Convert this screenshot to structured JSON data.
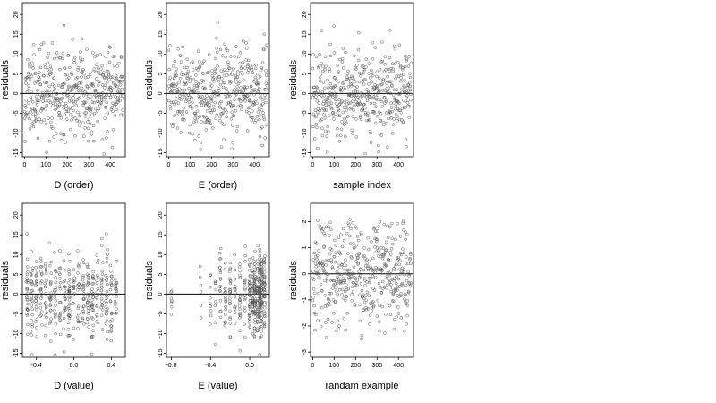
{
  "chart_data": [
    {
      "type": "scatter",
      "xlabel": "D (order)",
      "ylabel": "residuals",
      "xlim": [
        -10,
        470
      ],
      "ylim": [
        -16,
        23
      ],
      "xticks": [
        0,
        100,
        200,
        300,
        400
      ],
      "xtick_labels": [
        "0",
        "100",
        "200",
        "300",
        "400"
      ],
      "yticks": [
        -15,
        -10,
        -5,
        0,
        5,
        10,
        15,
        20
      ],
      "ytick_labels": [
        "-15",
        "-10",
        "-5",
        "0",
        "5",
        "10",
        "15",
        "20"
      ],
      "hline": 0,
      "x_kind": "index",
      "n": 460,
      "y_spread": 5.5,
      "seed": 11
    },
    {
      "type": "scatter",
      "xlabel": "E (order)",
      "ylabel": "residuals",
      "xlim": [
        -10,
        470
      ],
      "ylim": [
        -16,
        23
      ],
      "xticks": [
        0,
        100,
        200,
        300,
        400
      ],
      "xtick_labels": [
        "0",
        "100",
        "200",
        "300",
        "400"
      ],
      "yticks": [
        -15,
        -10,
        -5,
        0,
        5,
        10,
        15,
        20
      ],
      "ytick_labels": [
        "-15",
        "-10",
        "-5",
        "0",
        "5",
        "10",
        "15",
        "20"
      ],
      "hline": 0,
      "x_kind": "index",
      "n": 460,
      "y_spread": 5.5,
      "seed": 23
    },
    {
      "type": "scatter",
      "xlabel": "sample index",
      "ylabel": "residuals",
      "xlim": [
        -10,
        470
      ],
      "ylim": [
        -16,
        23
      ],
      "xticks": [
        0,
        100,
        200,
        300,
        400
      ],
      "xtick_labels": [
        "0",
        "100",
        "200",
        "300",
        "400"
      ],
      "yticks": [
        -15,
        -10,
        -5,
        0,
        5,
        10,
        15,
        20
      ],
      "ytick_labels": [
        "-15",
        "-10",
        "-5",
        "0",
        "5",
        "10",
        "15",
        "20"
      ],
      "hline": 0,
      "x_kind": "index",
      "n": 460,
      "y_spread": 5.5,
      "seed": 37
    },
    {
      "type": "scatter",
      "xlabel": "D (value)",
      "ylabel": "residuals",
      "xlim": [
        -0.55,
        0.55
      ],
      "ylim": [
        -16,
        23
      ],
      "xticks": [
        -0.4,
        0,
        0.4
      ],
      "xtick_labels": [
        "-0.4",
        "0.0",
        "0.4"
      ],
      "yticks": [
        -15,
        -10,
        -5,
        0,
        5,
        10,
        15,
        20
      ],
      "ytick_labels": [
        "-15",
        "-10",
        "-5",
        "0",
        "5",
        "10",
        "15",
        "20"
      ],
      "hline": 0,
      "x_kind": "columns",
      "x_columns": [
        -0.5,
        -0.45,
        -0.4,
        -0.35,
        -0.3,
        -0.25,
        -0.2,
        -0.15,
        -0.1,
        -0.05,
        0,
        0.05,
        0.1,
        0.15,
        0.2,
        0.25,
        0.3,
        0.35,
        0.4,
        0.45
      ],
      "x_jitter": 0.01,
      "n": 460,
      "y_spread": 5.5,
      "seed": 41
    },
    {
      "type": "scatter",
      "xlabel": "E (value)",
      "ylabel": "residuals",
      "xlim": [
        -0.85,
        0.2
      ],
      "ylim": [
        -16,
        23
      ],
      "xticks": [
        -0.8,
        -0.4,
        0
      ],
      "xtick_labels": [
        "-0.8",
        "-0.4",
        "0.0"
      ],
      "yticks": [
        -15,
        -10,
        -5,
        0,
        5,
        10,
        15,
        20
      ],
      "ytick_labels": [
        "-15",
        "-10",
        "-5",
        "0",
        "5",
        "10",
        "15",
        "20"
      ],
      "hline": 0,
      "x_kind": "columns",
      "x_columns": [
        -0.8,
        -0.5,
        -0.4,
        -0.35,
        -0.3,
        -0.25,
        -0.2,
        -0.15,
        -0.1,
        -0.05,
        0,
        0.03,
        0.05,
        0.08,
        0.1,
        0.12,
        0.15
      ],
      "x_weights": [
        1,
        2,
        2,
        3,
        4,
        5,
        6,
        6,
        7,
        8,
        12,
        14,
        16,
        16,
        18,
        16,
        12
      ],
      "x_jitter": 0.005,
      "n": 460,
      "y_spread": 5.0,
      "seed": 53
    },
    {
      "type": "scatter",
      "xlabel": "randam example",
      "ylabel": "residuals",
      "xlim": [
        -10,
        470
      ],
      "ylim": [
        -3.2,
        2.7
      ],
      "xticks": [
        0,
        100,
        200,
        300,
        400
      ],
      "xtick_labels": [
        "0",
        "100",
        "200",
        "300",
        "400"
      ],
      "yticks": [
        -3,
        -2,
        -1,
        0,
        1,
        2
      ],
      "ytick_labels": [
        "-3",
        "-2",
        "-1",
        "0",
        "1",
        "2"
      ],
      "hline": 0,
      "x_kind": "index",
      "n": 460,
      "y_spread": 1.0,
      "seed": 67
    }
  ]
}
